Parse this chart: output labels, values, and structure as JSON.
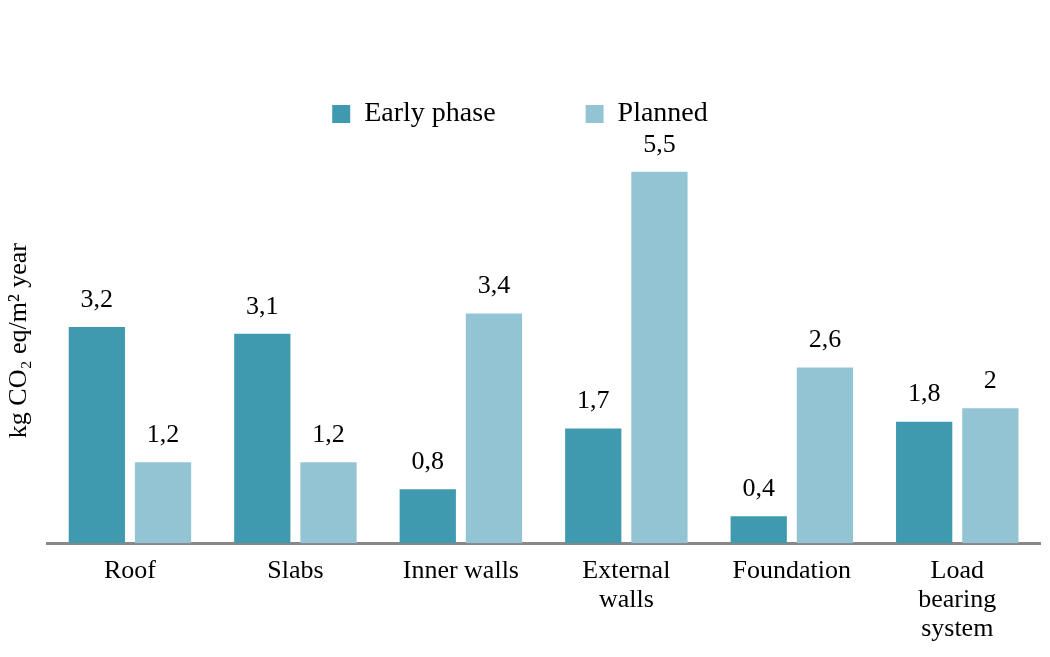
{
  "chart_data": {
    "type": "bar",
    "ylabel": "kg CO₂ eq/m² year",
    "categories": [
      "Roof",
      "Slabs",
      "Inner walls",
      "External walls",
      "Foundation",
      "Load bearing system"
    ],
    "series": [
      {
        "name": "Early phase",
        "color": "#3f9ab0",
        "values": [
          3.2,
          3.1,
          0.8,
          1.7,
          0.4,
          1.8
        ],
        "value_labels": [
          "3,2",
          "3,1",
          "0,8",
          "1,7",
          "0,4",
          "1,8"
        ]
      },
      {
        "name": "Planned",
        "color": "#93c4d4",
        "values": [
          1.2,
          1.2,
          3.4,
          5.5,
          2.6,
          2
        ],
        "value_labels": [
          "1,2",
          "1,2",
          "3,4",
          "5,5",
          "2,6",
          "2"
        ]
      }
    ],
    "legend": "top",
    "grid": false
  }
}
